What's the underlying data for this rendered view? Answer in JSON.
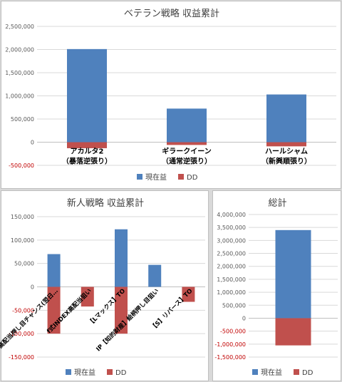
{
  "chart_data": [
    {
      "type": "bar",
      "title": "ベテラン戦略 収益累計",
      "categories": [
        [
          "アカルタ2",
          "（暴落逆張り）"
        ],
        [
          "ギラークイーン",
          "（通常逆張り）"
        ],
        [
          "ハールシャム",
          "（新興順張り）"
        ]
      ],
      "series": [
        {
          "name": "現在益",
          "color": "#4f81bd",
          "values": [
            2010000,
            725000,
            1030000
          ]
        },
        {
          "name": "DD",
          "color": "#c0504d",
          "values": [
            -130000,
            -60000,
            -90000
          ]
        }
      ],
      "ylim": [
        -500000,
        2500000
      ],
      "yticks": [
        -500000,
        0,
        500000,
        1000000,
        1500000,
        2000000,
        2500000
      ],
      "yticklabels": [
        "-500,000",
        "0",
        "500,000",
        "1,000,000",
        "1,500,000",
        "2,000,000",
        "2,500,000"
      ],
      "grid": true,
      "legend": "bottom",
      "xlabel": "",
      "ylabel": ""
    },
    {
      "type": "bar",
      "title": "新人戦略 収益累計",
      "categories": [
        "高配当押し目チャンス(翌日…",
        "f式INDEX高配当狙い",
        "【Lマックス】TO",
        "IP【知的財産】絵柄押し目狙い",
        "【S】リバース】TO"
      ],
      "series": [
        {
          "name": "現在益",
          "color": "#4f81bd",
          "values": [
            70000,
            0,
            123000,
            47000,
            0
          ]
        },
        {
          "name": "DD",
          "color": "#c0504d",
          "values": [
            -100000,
            -42000,
            -100000,
            0,
            -32000
          ]
        }
      ],
      "ylim": [
        -150000,
        150000
      ],
      "yticks": [
        -150000,
        -100000,
        -50000,
        0,
        50000,
        100000,
        150000
      ],
      "yticklabels": [
        "-150,000",
        "-100,000",
        "-50,000",
        "0",
        "50,000",
        "100,000",
        "150,000"
      ],
      "grid": true,
      "legend": "bottom",
      "xlabel": "",
      "ylabel": ""
    },
    {
      "type": "bar",
      "title": "総計",
      "categories": [
        ""
      ],
      "series": [
        {
          "name": "現在益",
          "color": "#4f81bd",
          "values": [
            3400000
          ]
        },
        {
          "name": "DD",
          "color": "#c0504d",
          "values": [
            -1050000
          ]
        }
      ],
      "ylim": [
        -1500000,
        4000000
      ],
      "yticks": [
        -1500000,
        -1000000,
        -500000,
        0,
        500000,
        1000000,
        1500000,
        2000000,
        2500000,
        3000000,
        3500000,
        4000000
      ],
      "yticklabels": [
        "-1,500,000",
        "-1,000,000",
        "-500,000",
        "0",
        "500,000",
        "1,000,000",
        "1,500,000",
        "2,000,000",
        "2,500,000",
        "3,000,000",
        "3,500,000",
        "4,000,000"
      ],
      "grid": true,
      "legend": "bottom",
      "xlabel": "",
      "ylabel": ""
    }
  ]
}
